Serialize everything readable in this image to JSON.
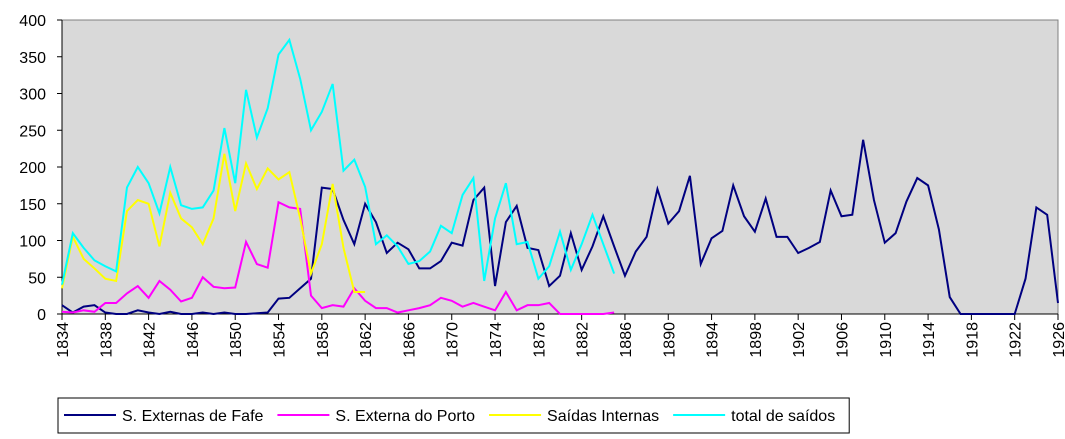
{
  "chart_data": {
    "type": "line",
    "x": [
      1834,
      1835,
      1836,
      1837,
      1838,
      1839,
      1840,
      1841,
      1842,
      1843,
      1844,
      1845,
      1846,
      1847,
      1848,
      1849,
      1850,
      1851,
      1852,
      1853,
      1854,
      1855,
      1856,
      1857,
      1858,
      1859,
      1860,
      1861,
      1862,
      1863,
      1864,
      1865,
      1866,
      1867,
      1868,
      1869,
      1870,
      1871,
      1872,
      1873,
      1874,
      1875,
      1876,
      1877,
      1878,
      1879,
      1880,
      1881,
      1882,
      1883,
      1884,
      1885,
      1886,
      1887,
      1888,
      1889,
      1890,
      1891,
      1892,
      1893,
      1894,
      1895,
      1896,
      1897,
      1898,
      1899,
      1900,
      1901,
      1902,
      1903,
      1904,
      1905,
      1906,
      1907,
      1908,
      1909,
      1910,
      1911,
      1912,
      1913,
      1914,
      1915,
      1916,
      1917,
      1918,
      1919,
      1920,
      1921,
      1922,
      1923,
      1924,
      1925,
      1926
    ],
    "series": [
      {
        "name": "S. Externas de  Fafe",
        "color": "#000080",
        "values": [
          12,
          2,
          10,
          12,
          2,
          0,
          0,
          5,
          2,
          0,
          3,
          0,
          0,
          2,
          0,
          2,
          0,
          0,
          1,
          2,
          21,
          22,
          35,
          48,
          172,
          170,
          128,
          95,
          150,
          125,
          83,
          97,
          88,
          62,
          62,
          72,
          97,
          93,
          155,
          172,
          38,
          125,
          147,
          90,
          87,
          38,
          52,
          110,
          60,
          92,
          133,
          92,
          52,
          85,
          105,
          170,
          123,
          140,
          188,
          68,
          103,
          113,
          175,
          133,
          112,
          157,
          105,
          105,
          83,
          90,
          98,
          168,
          133,
          135,
          237,
          155,
          97,
          110,
          153,
          185,
          175,
          115,
          23,
          0,
          0,
          0,
          0,
          0,
          0,
          48,
          145,
          135,
          15
        ]
      },
      {
        "name": "S. Externa do Porto",
        "color": "#ff00ff",
        "values": [
          3,
          2,
          5,
          3,
          15,
          15,
          28,
          38,
          22,
          45,
          33,
          17,
          22,
          50,
          37,
          35,
          36,
          98,
          68,
          63,
          152,
          145,
          143,
          25,
          8,
          12,
          10,
          35,
          18,
          8,
          8,
          2,
          5,
          8,
          12,
          22,
          18,
          10,
          15,
          10,
          5,
          30,
          5,
          12,
          12,
          15,
          0,
          0,
          0,
          0,
          0,
          2,
          null,
          null,
          null,
          null,
          null,
          null,
          null,
          null,
          null,
          null,
          null,
          null,
          null,
          null,
          null,
          null,
          null,
          null,
          null,
          null,
          null,
          null,
          null,
          null,
          null,
          null,
          null,
          null,
          null,
          null,
          null,
          null,
          null,
          null,
          null,
          null,
          null,
          null,
          null,
          null,
          null
        ]
      },
      {
        "name": "Saídas Internas",
        "color": "#ffff00",
        "values": [
          35,
          105,
          75,
          62,
          48,
          45,
          140,
          155,
          150,
          92,
          165,
          130,
          118,
          95,
          130,
          218,
          140,
          205,
          170,
          198,
          183,
          193,
          130,
          55,
          95,
          177,
          90,
          30,
          30,
          null,
          null,
          null,
          null,
          null,
          null,
          null,
          null,
          null,
          null,
          null,
          null,
          null,
          null,
          null,
          null,
          null,
          null,
          null,
          null,
          null,
          null,
          null,
          null,
          null,
          null,
          null,
          null,
          null,
          null,
          null,
          null,
          null,
          null,
          null,
          null,
          null,
          null,
          null,
          null,
          null,
          null,
          null,
          null,
          null,
          null,
          null,
          null,
          null,
          null,
          null,
          null,
          null,
          null,
          null,
          null,
          null,
          null,
          null,
          null,
          null,
          null,
          null,
          null
        ]
      },
      {
        "name": "total de saídos",
        "color": "#00ffff",
        "values": [
          40,
          110,
          90,
          73,
          65,
          58,
          172,
          200,
          178,
          137,
          200,
          148,
          143,
          145,
          168,
          253,
          178,
          305,
          240,
          280,
          353,
          373,
          320,
          250,
          275,
          313,
          195,
          210,
          173,
          95,
          107,
          92,
          68,
          72,
          85,
          120,
          110,
          162,
          185,
          45,
          130,
          178,
          95,
          98,
          48,
          65,
          112,
          60,
          95,
          135,
          95,
          55,
          null,
          null,
          null,
          null,
          null,
          null,
          null,
          null,
          null,
          null,
          null,
          null,
          null,
          null,
          null,
          null,
          null,
          null,
          null,
          null,
          null,
          null,
          null,
          null,
          null,
          null,
          null,
          null,
          null,
          null,
          null,
          null,
          null,
          null,
          null,
          null,
          null,
          null,
          null,
          null,
          null
        ]
      }
    ],
    "xlim": [
      1834,
      1926
    ],
    "xticks": [
      1834,
      1838,
      1842,
      1846,
      1850,
      1854,
      1858,
      1862,
      1866,
      1870,
      1874,
      1878,
      1882,
      1886,
      1890,
      1894,
      1898,
      1902,
      1906,
      1910,
      1914,
      1918,
      1922,
      1926
    ],
    "ylim": [
      0,
      400
    ],
    "yticks": [
      0,
      50,
      100,
      150,
      200,
      250,
      300,
      350,
      400
    ],
    "plot_background": "#d9d9d9",
    "legend": "bottom"
  }
}
